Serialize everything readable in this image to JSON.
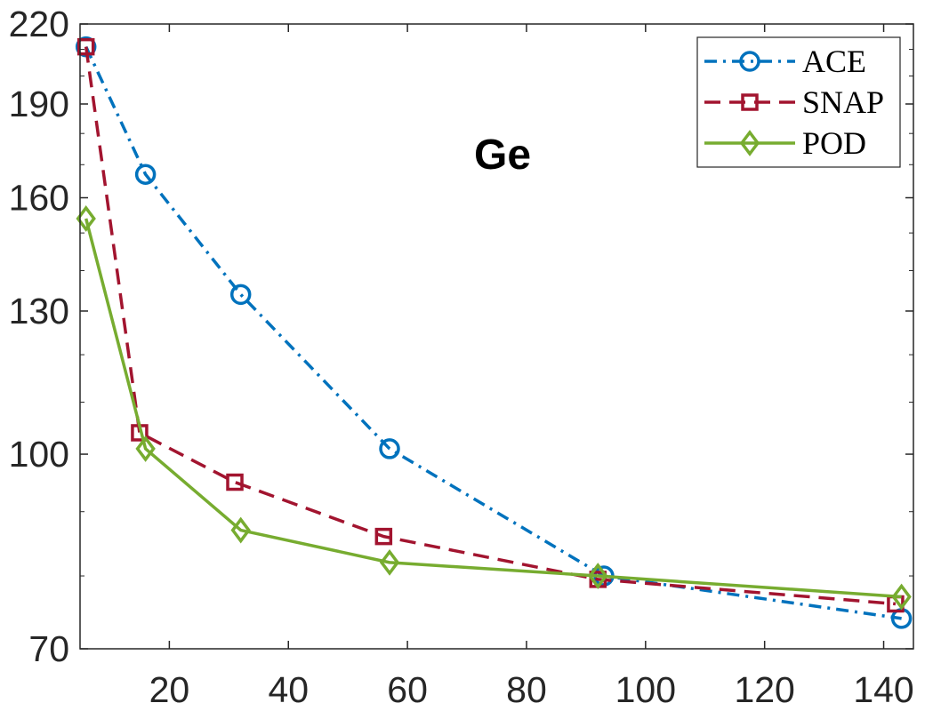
{
  "chart_data": {
    "type": "line",
    "title": "Ge",
    "xlabel": "",
    "ylabel": "",
    "xlim": [
      5,
      145
    ],
    "ylim": [
      70,
      220
    ],
    "y_scale": "log",
    "x_ticks": [
      20,
      40,
      60,
      80,
      100,
      120,
      140
    ],
    "y_ticks": [
      70,
      100,
      130,
      160,
      190,
      220
    ],
    "grid": false,
    "legend_position": "top-right",
    "series": [
      {
        "name": "ACE",
        "color": "#0072BD",
        "line_style": "dash-dot",
        "marker": "circle",
        "x": [
          6,
          16,
          32,
          57,
          93,
          143
        ],
        "y": [
          211,
          167,
          134,
          101,
          80,
          74
        ]
      },
      {
        "name": "SNAP",
        "color": "#A2142F",
        "line_style": "dashed",
        "marker": "square",
        "x": [
          6,
          15,
          31,
          56,
          92,
          142
        ],
        "y": [
          211,
          104,
          95,
          86,
          79.5,
          76
        ]
      },
      {
        "name": "POD",
        "color": "#77AC30",
        "line_style": "solid",
        "marker": "diamond",
        "x": [
          6,
          16,
          32,
          57,
          92,
          143
        ],
        "y": [
          154,
          101,
          87,
          82,
          80,
          77
        ]
      }
    ]
  }
}
